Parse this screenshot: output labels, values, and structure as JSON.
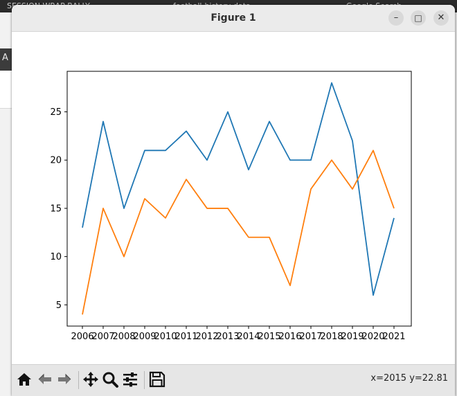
{
  "background": {
    "tab1": "SESSION WRAP BALLY",
    "tab2": "football-history-data",
    "tab3": "Google Search",
    "left_letter": "A"
  },
  "window": {
    "title": "Figure 1",
    "buttons": {
      "minimize": "–",
      "maximize": "□",
      "close": "✕"
    }
  },
  "toolbar": {
    "icons": [
      "home-icon",
      "back-icon",
      "forward-icon",
      "pan-icon",
      "zoom-icon",
      "configure-subplots-icon",
      "save-icon"
    ],
    "coords": "x=2015 y=22.81"
  },
  "colors": {
    "series1": "#1f77b4",
    "series2": "#ff7f0e"
  },
  "chart_data": {
    "type": "line",
    "title": "",
    "xlabel": "",
    "ylabel": "",
    "x": [
      "2006",
      "2007",
      "2008",
      "2009",
      "2010",
      "2011",
      "2012",
      "2013",
      "2014",
      "2015",
      "2016",
      "2017",
      "2018",
      "2019",
      "2020",
      "2021"
    ],
    "series": [
      {
        "values": [
          13,
          24,
          15,
          21,
          21,
          23,
          20,
          25,
          19,
          24,
          20,
          20,
          28,
          22,
          6,
          14
        ],
        "color": "#1f77b4"
      },
      {
        "values": [
          4,
          15,
          10,
          16,
          14,
          18,
          15,
          15,
          12,
          12,
          7,
          17,
          20,
          17,
          21,
          15
        ],
        "color": "#ff7f0e"
      }
    ],
    "yticks": [
      "5",
      "10",
      "15",
      "20",
      "25"
    ],
    "ylim": [
      2.8,
      29.2
    ],
    "grid": false,
    "legend": "none"
  }
}
